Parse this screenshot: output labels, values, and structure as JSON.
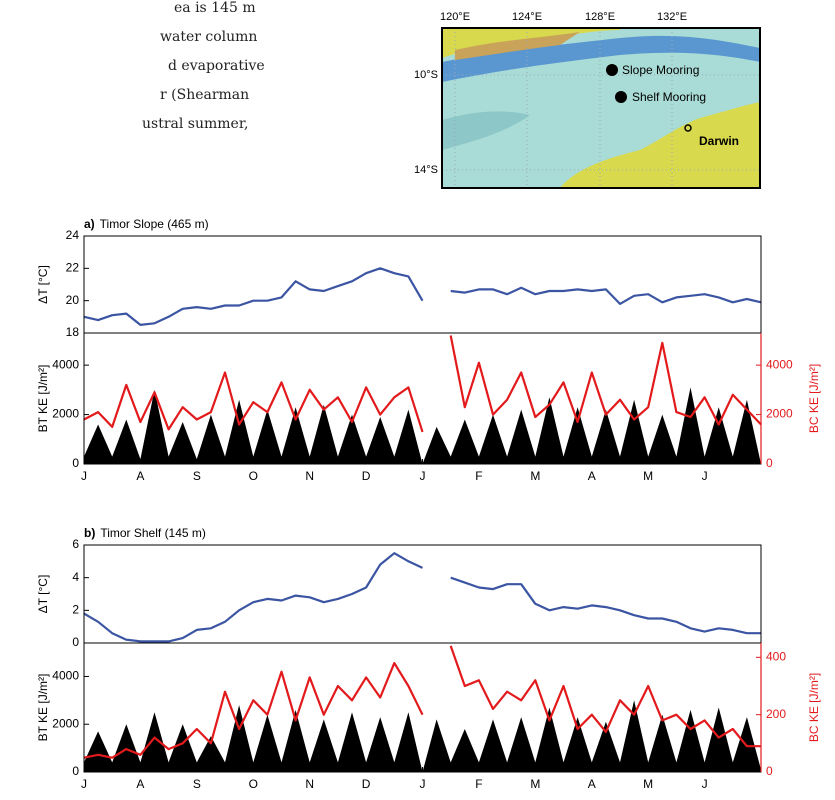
{
  "text_fragment": [
    "ea is 145 m",
    "water column",
    "d evaporative",
    "r (Shearman",
    "ustral summer,"
  ],
  "map": {
    "lon_labels": [
      "120°E",
      "124°E",
      "128°E",
      "132°E"
    ],
    "lat_labels": [
      "10°S",
      "14°S"
    ],
    "sites": [
      "Slope Mooring",
      "Shelf Mooring",
      "Darwin"
    ]
  },
  "chart_data": [
    {
      "type": "line",
      "panel_label": "a)",
      "title": "Timor Slope (465 m)",
      "ylabel": "ΔT  [°C]",
      "x": [
        0,
        0.25,
        0.5,
        0.75,
        1,
        1.25,
        1.5,
        1.75,
        2,
        2.25,
        2.5,
        2.75,
        3,
        3.25,
        3.5,
        3.75,
        4,
        4.25,
        4.5,
        4.75,
        5,
        5.25,
        5.5,
        5.75,
        6,
        6.25,
        6.5,
        6.75,
        7,
        7.25,
        7.5,
        7.75,
        8,
        8.25,
        8.5,
        8.75,
        9,
        9.25,
        9.5,
        9.75,
        10,
        10.25,
        10.5,
        10.75,
        11,
        11.25,
        11.5,
        11.75,
        12
      ],
      "xlim": [
        0,
        12
      ],
      "ylim": [
        18,
        24
      ],
      "yticks": [
        18,
        20,
        22,
        24
      ],
      "series": [
        {
          "color": "#3b55a3",
          "values": [
            19.0,
            18.8,
            19.1,
            19.2,
            18.5,
            18.6,
            19.0,
            19.5,
            19.6,
            19.5,
            19.7,
            19.7,
            20.0,
            20.0,
            20.2,
            21.2,
            20.7,
            20.6,
            20.9,
            21.2,
            21.7,
            22.0,
            21.7,
            21.5,
            20.0,
            null,
            20.6,
            20.5,
            20.7,
            20.7,
            20.4,
            20.8,
            20.4,
            20.6,
            20.6,
            20.7,
            20.6,
            20.7,
            19.8,
            20.3,
            20.4,
            19.9,
            20.2,
            20.3,
            20.4,
            20.2,
            19.9,
            20.1,
            19.9
          ]
        }
      ]
    },
    {
      "type": "combo",
      "ylabel": "BT KE  [J/m²]",
      "y2label": "BC KE  [J/m²]",
      "x": [
        0,
        0.25,
        0.5,
        0.75,
        1,
        1.25,
        1.5,
        1.75,
        2,
        2.25,
        2.5,
        2.75,
        3,
        3.25,
        3.5,
        3.75,
        4,
        4.25,
        4.5,
        4.75,
        5,
        5.25,
        5.5,
        5.75,
        6,
        6.25,
        6.5,
        6.75,
        7,
        7.25,
        7.5,
        7.75,
        8,
        8.25,
        8.5,
        8.75,
        9,
        9.25,
        9.5,
        9.75,
        10,
        10.25,
        10.5,
        10.75,
        11,
        11.25,
        11.5,
        11.75,
        12
      ],
      "xlim": [
        0,
        12
      ],
      "xticks": [
        {
          "value": 0,
          "label": "J"
        },
        {
          "value": 1,
          "label": "A"
        },
        {
          "value": 2,
          "label": "S"
        },
        {
          "value": 3,
          "label": "O"
        },
        {
          "value": 4,
          "label": "N"
        },
        {
          "value": 5,
          "label": "D"
        },
        {
          "value": 6,
          "label": "J"
        },
        {
          "value": 7,
          "label": "F"
        },
        {
          "value": 8,
          "label": "M"
        },
        {
          "value": 9,
          "label": "A"
        },
        {
          "value": 10,
          "label": "M"
        },
        {
          "value": 11,
          "label": "J"
        }
      ],
      "ylim": [
        0,
        5300
      ],
      "yticks": [
        0,
        2000,
        4000
      ],
      "y2lim": [
        0,
        5300
      ],
      "y2ticks": [
        0,
        2000,
        4000
      ],
      "y2color": "#e31a1c",
      "series": [
        {
          "color": "#000000",
          "area": true,
          "values": [
            300,
            1600,
            300,
            1800,
            200,
            3000,
            300,
            1700,
            200,
            2000,
            300,
            2600,
            300,
            2200,
            300,
            2300,
            300,
            2400,
            300,
            2000,
            300,
            1900,
            300,
            2200,
            0,
            1500,
            300,
            1800,
            300,
            2000,
            300,
            2200,
            300,
            2700,
            300,
            2300,
            300,
            2200,
            300,
            2600,
            300,
            2000,
            300,
            3100,
            300,
            2300,
            300,
            2600,
            0
          ]
        },
        {
          "color": "#e31a1c",
          "axis": "y2",
          "values": [
            1800,
            2100,
            1500,
            3200,
            1700,
            2900,
            1400,
            2300,
            1800,
            2100,
            3700,
            1600,
            2500,
            2100,
            3300,
            1800,
            3000,
            2200,
            2700,
            1700,
            3100,
            2000,
            2700,
            3100,
            1300,
            null,
            5200,
            2300,
            4100,
            2000,
            2600,
            3700,
            1900,
            2400,
            3300,
            1700,
            3700,
            2000,
            2600,
            1800,
            2300,
            4900,
            2100,
            1900,
            2700,
            1600,
            2800,
            2200,
            1600
          ]
        }
      ]
    },
    {
      "type": "line",
      "panel_label": "b)",
      "title": "Timor Shelf (145 m)",
      "ylabel": "ΔT  [°C]",
      "x": [
        0,
        0.25,
        0.5,
        0.75,
        1,
        1.25,
        1.5,
        1.75,
        2,
        2.25,
        2.5,
        2.75,
        3,
        3.25,
        3.5,
        3.75,
        4,
        4.25,
        4.5,
        4.75,
        5,
        5.25,
        5.5,
        5.75,
        6,
        6.25,
        6.5,
        6.75,
        7,
        7.25,
        7.5,
        7.75,
        8,
        8.25,
        8.5,
        8.75,
        9,
        9.25,
        9.5,
        9.75,
        10,
        10.25,
        10.5,
        10.75,
        11,
        11.25,
        11.5,
        11.75,
        12
      ],
      "xlim": [
        0,
        12
      ],
      "ylim": [
        0,
        6
      ],
      "yticks": [
        0,
        2,
        4,
        6
      ],
      "series": [
        {
          "color": "#3b55a3",
          "values": [
            1.8,
            1.3,
            0.6,
            0.2,
            0.1,
            0.1,
            0.1,
            0.3,
            0.8,
            0.9,
            1.3,
            2.0,
            2.5,
            2.7,
            2.6,
            2.9,
            2.8,
            2.5,
            2.7,
            3.0,
            3.4,
            4.8,
            5.5,
            5.0,
            4.6,
            null,
            4.0,
            3.7,
            3.4,
            3.3,
            3.6,
            3.6,
            2.4,
            2.0,
            2.2,
            2.1,
            2.3,
            2.2,
            2.0,
            1.7,
            1.5,
            1.5,
            1.3,
            0.9,
            0.7,
            0.9,
            0.8,
            0.6,
            0.6
          ]
        }
      ]
    },
    {
      "type": "combo",
      "ylabel": "BT KE  [J/m²]",
      "y2label": "BC KE  [J/m²]",
      "x": [
        0,
        0.25,
        0.5,
        0.75,
        1,
        1.25,
        1.5,
        1.75,
        2,
        2.25,
        2.5,
        2.75,
        3,
        3.25,
        3.5,
        3.75,
        4,
        4.25,
        4.5,
        4.75,
        5,
        5.25,
        5.5,
        5.75,
        6,
        6.25,
        6.5,
        6.75,
        7,
        7.25,
        7.5,
        7.75,
        8,
        8.25,
        8.5,
        8.75,
        9,
        9.25,
        9.5,
        9.75,
        10,
        10.25,
        10.5,
        10.75,
        11,
        11.25,
        11.5,
        11.75,
        12
      ],
      "xlim": [
        0,
        12
      ],
      "xticks": [
        {
          "value": 0,
          "label": "J"
        },
        {
          "value": 1,
          "label": "A"
        },
        {
          "value": 2,
          "label": "S"
        },
        {
          "value": 3,
          "label": "O"
        },
        {
          "value": 4,
          "label": "N"
        },
        {
          "value": 5,
          "label": "D"
        },
        {
          "value": 6,
          "label": "J"
        },
        {
          "value": 7,
          "label": "F"
        },
        {
          "value": 8,
          "label": "M"
        },
        {
          "value": 9,
          "label": "A"
        },
        {
          "value": 10,
          "label": "M"
        },
        {
          "value": 11,
          "label": "J"
        }
      ],
      "ylim": [
        0,
        5400
      ],
      "yticks": [
        0,
        2000,
        4000
      ],
      "y2lim": [
        0,
        450
      ],
      "y2ticks": [
        0,
        200,
        400
      ],
      "y2color": "#e31a1c",
      "series": [
        {
          "color": "#000000",
          "area": true,
          "values": [
            400,
            1700,
            400,
            2000,
            400,
            2500,
            400,
            2000,
            400,
            1500,
            400,
            2800,
            400,
            2400,
            400,
            2600,
            400,
            2200,
            400,
            2500,
            400,
            2300,
            400,
            2500,
            0,
            2200,
            400,
            1800,
            400,
            2200,
            400,
            2300,
            400,
            2700,
            400,
            2300,
            400,
            2100,
            400,
            3000,
            400,
            2400,
            400,
            2600,
            400,
            2700,
            400,
            2300,
            100
          ]
        },
        {
          "color": "#e31a1c",
          "axis": "y2",
          "values": [
            50,
            60,
            50,
            80,
            60,
            120,
            80,
            100,
            150,
            100,
            280,
            150,
            250,
            200,
            350,
            180,
            330,
            200,
            300,
            250,
            330,
            260,
            380,
            300,
            200,
            null,
            440,
            300,
            320,
            220,
            280,
            250,
            320,
            180,
            300,
            150,
            200,
            140,
            250,
            200,
            300,
            180,
            200,
            150,
            180,
            120,
            150,
            90,
            90
          ]
        }
      ]
    }
  ]
}
